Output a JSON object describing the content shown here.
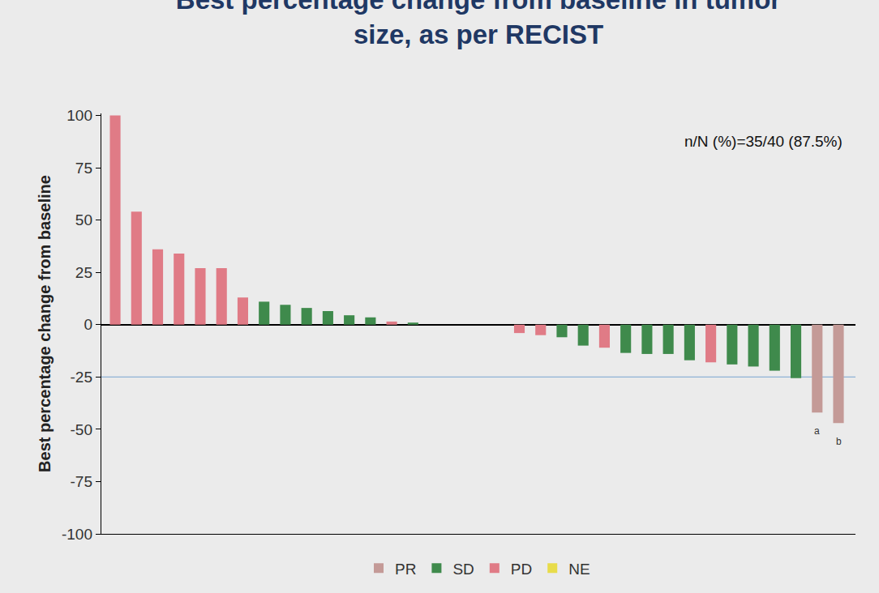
{
  "chart_data": {
    "type": "bar",
    "title": "Best percentage change from baseline in tumor\nsize, as per RECIST",
    "y_label": "Best percentage change from baseline",
    "annotation": "n/N (%)=35/40 (87.5%)",
    "categories": [
      null,
      null,
      null,
      null,
      null,
      null,
      null,
      null,
      null,
      null,
      null,
      null,
      null,
      null,
      null,
      null,
      null,
      null,
      null,
      null,
      null,
      null,
      null,
      null,
      null,
      null,
      null,
      null,
      null,
      null,
      null,
      null,
      null,
      null,
      null
    ],
    "series": [
      {
        "name": "PR",
        "color": "#c49a97",
        "values": [
          null,
          null,
          null,
          null,
          null,
          null,
          null,
          null,
          null,
          null,
          null,
          null,
          null,
          null,
          null,
          null,
          null,
          null,
          null,
          null,
          null,
          null,
          null,
          null,
          null,
          null,
          null,
          null,
          null,
          null,
          null,
          null,
          null,
          -42,
          -47
        ]
      },
      {
        "name": "SD",
        "color": "#3f8a4c",
        "values": [
          null,
          null,
          null,
          null,
          null,
          null,
          null,
          11,
          9.5,
          8,
          6.5,
          4.5,
          3.5,
          null,
          1,
          0,
          0,
          0,
          0,
          null,
          null,
          -6,
          -10,
          null,
          -13.5,
          -14,
          -14,
          -17,
          null,
          -19,
          -20,
          -22,
          -25.5,
          null,
          null
        ]
      },
      {
        "name": "PD",
        "color": "#e07b86",
        "values": [
          100,
          54,
          36,
          34,
          27,
          27,
          13,
          null,
          null,
          null,
          null,
          null,
          null,
          1.5,
          null,
          null,
          null,
          null,
          null,
          -4,
          -5,
          null,
          null,
          -11,
          null,
          null,
          null,
          null,
          -18,
          null,
          null,
          null,
          null,
          null,
          null
        ]
      },
      {
        "name": "NE",
        "color": "#e8dc4a",
        "values": [
          null,
          null,
          null,
          null,
          null,
          null,
          null,
          null,
          null,
          null,
          null,
          null,
          null,
          null,
          null,
          null,
          null,
          null,
          null,
          null,
          null,
          null,
          null,
          null,
          null,
          null,
          null,
          null,
          null,
          null,
          null,
          null,
          null,
          null,
          null
        ]
      }
    ],
    "notes": [
      null,
      null,
      null,
      null,
      null,
      null,
      null,
      null,
      null,
      null,
      null,
      null,
      null,
      null,
      null,
      null,
      null,
      null,
      null,
      null,
      null,
      null,
      null,
      null,
      null,
      null,
      null,
      null,
      null,
      null,
      null,
      null,
      null,
      "a",
      "b"
    ],
    "threshold": -25,
    "ylim": [
      -100,
      101
    ],
    "yticks": [
      -100,
      -75,
      -50,
      -25,
      0,
      25,
      50,
      75,
      100
    ],
    "legend": "bottom",
    "tick_labels": "y",
    "grid": false
  }
}
